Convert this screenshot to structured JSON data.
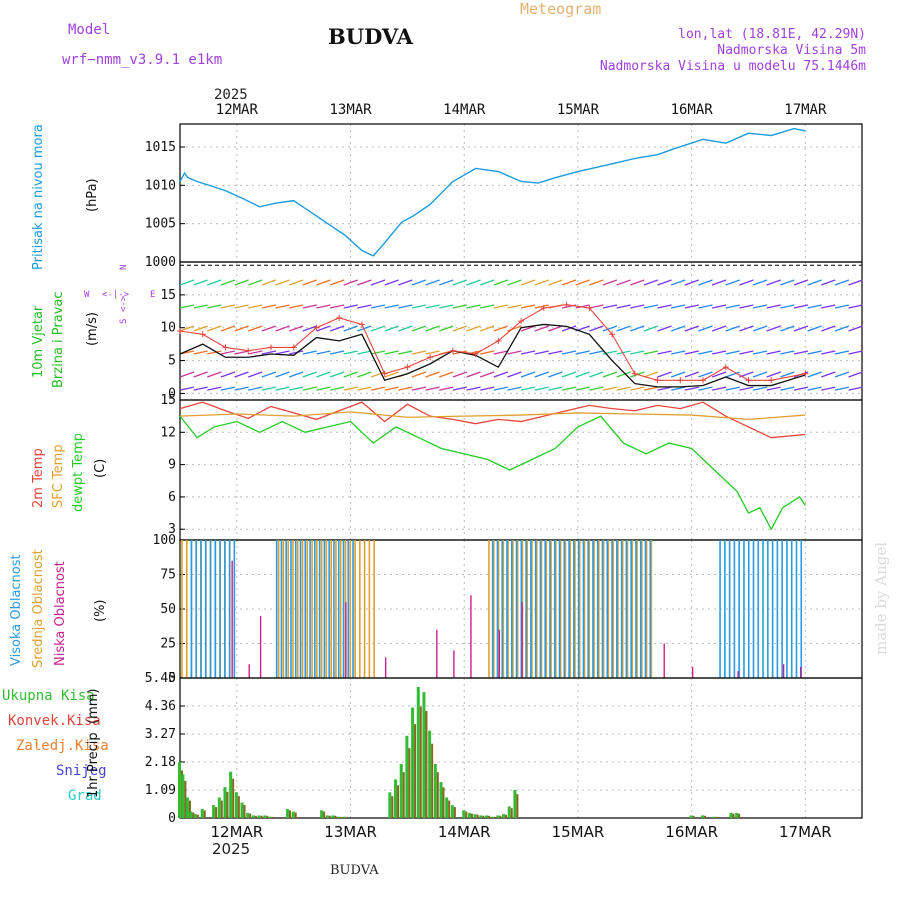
{
  "header": {
    "model_label": "Model",
    "model_name": "wrf−nmm_v3.9.1  e1km",
    "station": "BUDVA",
    "product": "Meteogram",
    "coords": "lon,lat (18.81E, 42.29N)",
    "elevation": "Nadmorska Visina 5m",
    "model_elevation": "Nadmorska Visina u modelu 75.1446m",
    "footer_station": "BUDVA",
    "watermark": "made by Angel",
    "year_top": "2025",
    "year_bottom": "2025"
  },
  "colors": {
    "pressure": "#1a9be0",
    "temp2m": "#e8443c",
    "sfc": "#e0a030",
    "dew": "#22cc22",
    "high": "#2a9be0",
    "mid": "#e0a030",
    "low": "#cc1e8c",
    "precip_total": "#33bb33",
    "precip_conv": "#e8443c",
    "precip_frozen": "#f08030",
    "precip_snow": "#4444dd",
    "precip_hail": "#22cccc",
    "wind_label": "#22bb22",
    "compass": "#a040e0"
  },
  "chart_data": [
    {
      "type": "line",
      "panel": "pressure",
      "title": "",
      "ylabel": "Pritisak na nivou mora",
      "unit": "(hPa)",
      "ylim": [
        1000,
        1018
      ],
      "yticks": [
        1000,
        1005,
        1010,
        1015
      ],
      "grid": true,
      "x_day": [
        0,
        0.04,
        0.07,
        0.15,
        0.3,
        0.4,
        0.55,
        0.7,
        0.85,
        1.0,
        1.1,
        1.25,
        1.45,
        1.6,
        1.7,
        1.8,
        1.95,
        2.05,
        2.2,
        2.4,
        2.6,
        2.8,
        3.0,
        3.15,
        3.3,
        3.5,
        3.8,
        4.0,
        4.2,
        4.35,
        4.6,
        4.8,
        5.0,
        5.2,
        5.4,
        5.5
      ],
      "values": [
        1010.5,
        1011.6,
        1011.0,
        1010.5,
        1009.8,
        1009.3,
        1008.3,
        1007.2,
        1007.7,
        1008.0,
        1007.0,
        1005.5,
        1003.5,
        1001.5,
        1000.8,
        1002.5,
        1005.2,
        1006.0,
        1007.5,
        1010.5,
        1012.2,
        1011.8,
        1010.5,
        1010.3,
        1011.0,
        1011.8,
        1012.8,
        1013.5,
        1014.0,
        1014.8,
        1016.0,
        1015.5,
        1016.8,
        1016.5,
        1017.4,
        1017.1
      ]
    },
    {
      "type": "line",
      "panel": "wind",
      "ylabel_1": "10m Vjetar",
      "ylabel_2": "Brzina i Pravac",
      "unit": "(m/s)",
      "compass": [
        "N",
        "S",
        "W",
        "E",
        "<-|->",
        "<->"
      ],
      "ylim": [
        -1,
        20
      ],
      "yticks": [
        0,
        5,
        10,
        15
      ],
      "grid": true,
      "series": [
        {
          "role": "speed",
          "x_day": [
            0,
            0.2,
            0.4,
            0.6,
            0.8,
            1.0,
            1.2,
            1.4,
            1.6,
            1.8,
            2.0,
            2.2,
            2.4,
            2.6,
            2.8,
            3.0,
            3.2,
            3.4,
            3.6,
            3.8,
            4.0,
            4.2,
            4.4,
            4.6,
            4.8,
            5.0,
            5.2,
            5.5
          ],
          "values": [
            6,
            7.5,
            5.5,
            5.5,
            6.0,
            5.8,
            8.5,
            8.0,
            9.0,
            2.0,
            3.0,
            4.5,
            6.5,
            5.8,
            4.0,
            10.0,
            10.5,
            10.2,
            9.0,
            5.0,
            1.5,
            1.0,
            1.0,
            1.2,
            2.5,
            1.2,
            1.2,
            2.8
          ]
        },
        {
          "role": "gust",
          "x_day": [
            0,
            0.2,
            0.4,
            0.6,
            0.8,
            1.0,
            1.2,
            1.4,
            1.6,
            1.8,
            2.0,
            2.2,
            2.4,
            2.6,
            2.8,
            3.0,
            3.2,
            3.4,
            3.6,
            3.8,
            4.0,
            4.2,
            4.4,
            4.6,
            4.8,
            5.0,
            5.2,
            5.5
          ],
          "values": [
            9.5,
            9.0,
            7.0,
            6.5,
            7.0,
            7.0,
            10.0,
            11.5,
            10.5,
            3.0,
            4.0,
            5.5,
            6.5,
            6.0,
            8.0,
            11.0,
            13.0,
            13.5,
            13.0,
            9.0,
            3.0,
            2.0,
            2.0,
            2.0,
            4.0,
            2.0,
            2.0,
            3.0
          ]
        }
      ]
    },
    {
      "type": "line",
      "panel": "temperature",
      "ylabel_1": "2m Temp",
      "ylabel_2": "SFC Temp",
      "ylabel_3": "dewpt Temp",
      "unit": "(C)",
      "ylim": [
        2,
        15
      ],
      "yticks": [
        3,
        6,
        9,
        12,
        15
      ],
      "grid": true,
      "series": [
        {
          "role": "t2m",
          "x_day": [
            0,
            0.2,
            0.4,
            0.6,
            0.8,
            1.0,
            1.2,
            1.4,
            1.6,
            1.8,
            2.0,
            2.2,
            2.4,
            2.6,
            2.8,
            3.0,
            3.2,
            3.4,
            3.6,
            3.8,
            4.0,
            4.2,
            4.4,
            4.6,
            4.8,
            5.0,
            5.2,
            5.5
          ],
          "values": [
            14.2,
            14.8,
            14.0,
            13.3,
            14.4,
            13.8,
            13.2,
            14.0,
            14.8,
            13.0,
            14.6,
            13.5,
            13.2,
            12.8,
            13.2,
            13.0,
            13.5,
            14.0,
            14.5,
            14.2,
            14.0,
            14.5,
            14.2,
            14.8,
            13.5,
            12.5,
            11.5,
            11.8
          ]
        },
        {
          "role": "sfc",
          "x_day": [
            0,
            0.5,
            1.0,
            1.5,
            2.0,
            2.5,
            3.0,
            3.5,
            4.0,
            4.5,
            5.0,
            5.5
          ],
          "values": [
            13.5,
            13.7,
            13.5,
            13.9,
            13.4,
            13.5,
            13.6,
            13.8,
            13.7,
            13.6,
            13.2,
            13.6
          ]
        },
        {
          "role": "dew",
          "x_day": [
            0,
            0.15,
            0.3,
            0.5,
            0.7,
            0.9,
            1.1,
            1.3,
            1.5,
            1.7,
            1.9,
            2.1,
            2.3,
            2.5,
            2.7,
            2.9,
            3.1,
            3.3,
            3.5,
            3.7,
            3.9,
            4.1,
            4.3,
            4.5,
            4.7,
            4.9,
            5.0,
            5.1,
            5.2,
            5.3,
            5.45,
            5.5
          ],
          "values": [
            13.5,
            11.5,
            12.5,
            13.0,
            12.0,
            13.0,
            12.0,
            12.5,
            13.0,
            11.0,
            12.5,
            11.5,
            10.5,
            10.0,
            9.5,
            8.5,
            9.5,
            10.5,
            12.5,
            13.5,
            11.0,
            10.0,
            11.0,
            10.5,
            8.5,
            6.5,
            4.5,
            5.0,
            3.0,
            5.0,
            6.0,
            5.2
          ]
        }
      ]
    },
    {
      "type": "bar",
      "panel": "cloud",
      "ylabel_1": "Visoka Oblacnost",
      "ylabel_2": "Srednja Oblacnost",
      "ylabel_3": "Niska Oblacnost",
      "unit": "(%)",
      "ylim": [
        0,
        100
      ],
      "yticks": [
        0,
        25,
        50,
        75,
        100
      ],
      "grid": true,
      "high": {
        "from_day": [
          0.1,
          0.85,
          2.75,
          4.75
        ],
        "to_day": [
          0.5,
          1.55,
          4.15,
          5.5
        ],
        "value": 100
      },
      "mid": {
        "from_day": [
          0.0,
          0.85,
          2.7
        ],
        "to_day": [
          0.45,
          1.7,
          4.15
        ],
        "value": 100
      },
      "low": {
        "x_day": [
          0.45,
          0.6,
          0.7,
          1.45,
          1.8,
          2.25,
          2.4,
          2.55,
          2.8,
          3.0,
          4.25,
          4.5,
          4.9,
          5.3,
          5.45
        ],
        "values": [
          85,
          10,
          45,
          55,
          15,
          35,
          20,
          60,
          35,
          55,
          25,
          8,
          5,
          10,
          8
        ]
      }
    },
    {
      "type": "bar",
      "panel": "precipitation",
      "ylabel": "1hr Precip",
      "unit": "(mm)",
      "legend": [
        "Ukupna Kisa",
        "Konvek.Kisa",
        "Zaledj.Kisa",
        "Snijeg",
        "Grad"
      ],
      "ylim": [
        0,
        5.45
      ],
      "yticks": [
        0,
        1.09,
        2.18,
        3.27,
        4.36,
        5.45
      ],
      "grid": true,
      "x_day": [
        0.0,
        0.03,
        0.07,
        0.1,
        0.14,
        0.2,
        0.3,
        0.35,
        0.4,
        0.45,
        0.5,
        0.55,
        0.6,
        0.65,
        0.7,
        0.75,
        0.8,
        0.95,
        1.0,
        1.25,
        1.3,
        1.35,
        1.4,
        1.45,
        1.85,
        1.9,
        1.95,
        2.0,
        2.05,
        2.1,
        2.15,
        2.2,
        2.25,
        2.3,
        2.35,
        2.4,
        2.5,
        2.55,
        2.6,
        2.65,
        2.7,
        2.75,
        2.8,
        2.85,
        2.9,
        2.95,
        4.5,
        4.6,
        4.7,
        4.85,
        4.9
      ],
      "values": [
        2.18,
        1.7,
        0.8,
        0.25,
        0.15,
        0.35,
        0.5,
        0.8,
        1.2,
        1.8,
        1.0,
        0.6,
        0.2,
        0.1,
        0.1,
        0.1,
        0.05,
        0.35,
        0.25,
        0.3,
        0.1,
        0.1,
        0.05,
        0.05,
        1.0,
        1.5,
        2.1,
        3.2,
        4.3,
        5.1,
        4.9,
        3.4,
        2.1,
        1.4,
        0.8,
        0.5,
        0.3,
        0.2,
        0.15,
        0.1,
        0.1,
        0.05,
        0.1,
        0.15,
        0.45,
        1.09,
        0.1,
        0.1,
        0.05,
        0.2,
        0.2
      ]
    }
  ],
  "x_axis": {
    "day_labels": [
      "12MAR",
      "13MAR",
      "14MAR",
      "15MAR",
      "16MAR",
      "17MAR"
    ],
    "day_positions": [
      0.5,
      1.5,
      2.5,
      3.5,
      4.5,
      5.5
    ],
    "bottom_labels": [
      "12MAR",
      "13MAR",
      "14MAR",
      "15MAR",
      "16MAR",
      "17MAR"
    ]
  }
}
